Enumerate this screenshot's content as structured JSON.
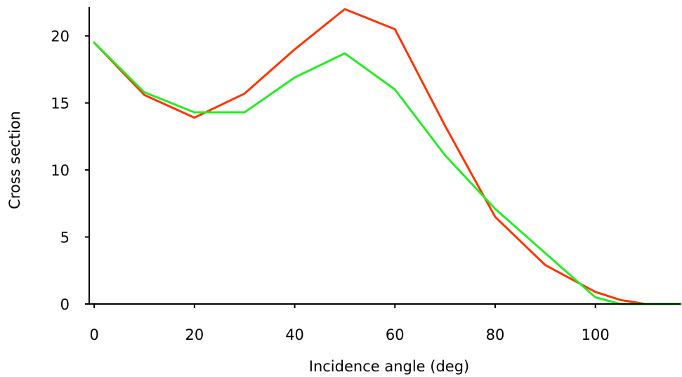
{
  "chart_data": {
    "type": "line",
    "title": "",
    "xlabel": "Incidence angle (deg)",
    "ylabel": "Cross section",
    "xlim": [
      -1,
      117
    ],
    "ylim": [
      0,
      22
    ],
    "x_ticks": [
      0,
      20,
      40,
      60,
      80,
      100
    ],
    "y_ticks": [
      0,
      5,
      10,
      15,
      20
    ],
    "x_tick_labels": [
      "0",
      "20",
      "40",
      "60",
      "80",
      "100"
    ],
    "y_tick_labels": [
      "0",
      "5",
      "10",
      "15",
      "20"
    ],
    "grid": false,
    "legend": "none",
    "series": [
      {
        "color": "#ff3300",
        "x": [
          0,
          10,
          20,
          30,
          40,
          50,
          60,
          70,
          80,
          90,
          100,
          105,
          110,
          117
        ],
        "y": [
          19.5,
          15.6,
          13.9,
          15.7,
          19.0,
          22.0,
          20.5,
          13.3,
          6.5,
          2.9,
          0.9,
          0.3,
          0.0,
          0.0
        ]
      },
      {
        "color": "#22ee22",
        "x": [
          0,
          10,
          20,
          30,
          40,
          50,
          60,
          70,
          80,
          90,
          100,
          105,
          110,
          117
        ],
        "y": [
          19.5,
          15.8,
          14.3,
          14.3,
          16.9,
          18.7,
          16.0,
          11.1,
          7.1,
          3.8,
          0.5,
          0.0,
          0.0,
          0.0
        ]
      }
    ]
  }
}
